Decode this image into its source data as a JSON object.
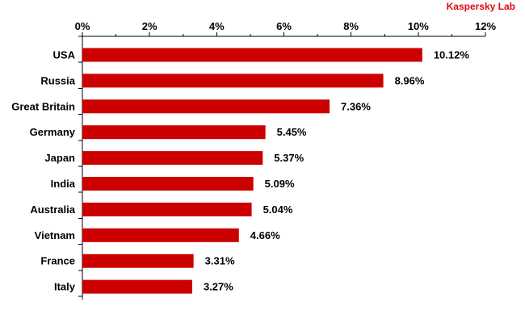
{
  "brand": {
    "text": "Kaspersky Lab",
    "color": "#e30613"
  },
  "chart_data": {
    "type": "bar",
    "orientation": "horizontal",
    "categories": [
      "USA",
      "Russia",
      "Great Britain",
      "Germany",
      "Japan",
      "India",
      "Australia",
      "Vietnam",
      "France",
      "Italy"
    ],
    "values": [
      10.12,
      8.96,
      7.36,
      5.45,
      5.37,
      5.09,
      5.04,
      4.66,
      3.31,
      3.27
    ],
    "data_labels": [
      "10.12%",
      "8.96%",
      "7.36%",
      "5.45%",
      "5.37%",
      "5.09%",
      "5.04%",
      "4.66%",
      "3.31%",
      "3.27%"
    ],
    "x_ticks": [
      0,
      2,
      4,
      6,
      8,
      10,
      12
    ],
    "x_tick_labels": [
      "0%",
      "2%",
      "4%",
      "6%",
      "8%",
      "10%",
      "12%"
    ],
    "xlim": [
      0,
      12
    ],
    "x_axis_position": "top",
    "grid": false,
    "legend": "none",
    "bar_color": "#cc0000",
    "title": "",
    "xlabel": "",
    "ylabel": ""
  }
}
